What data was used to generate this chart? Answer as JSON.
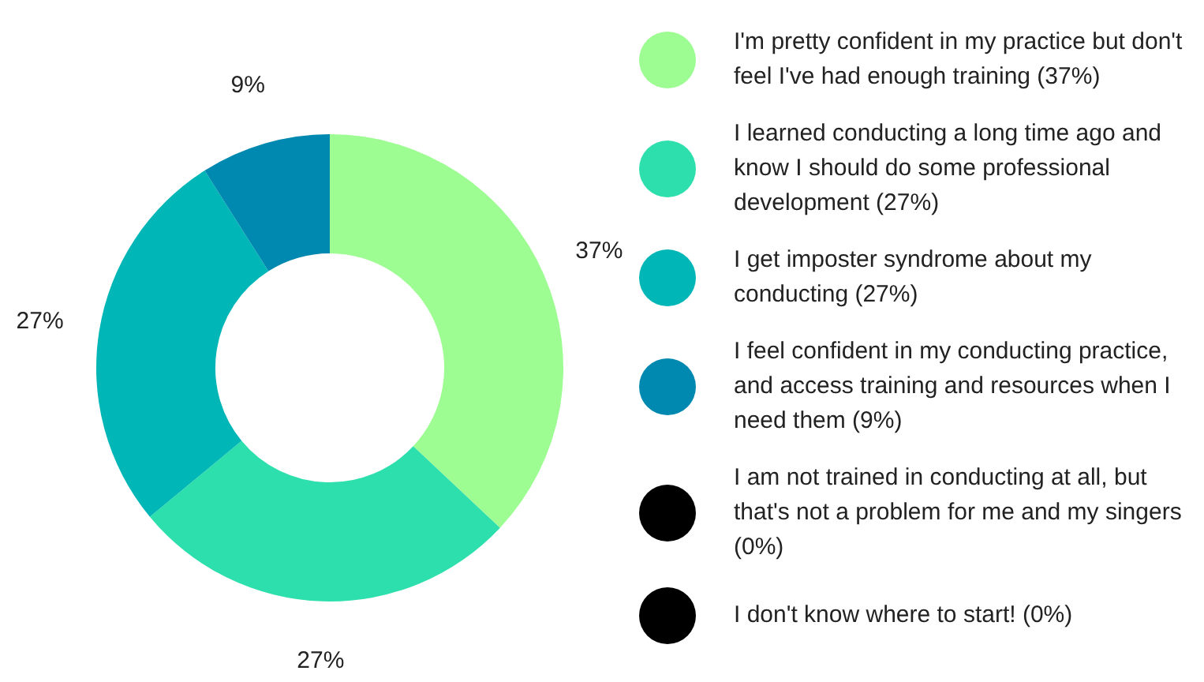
{
  "chart_data": {
    "type": "donut",
    "categories": [
      "I'm pretty confident in my practice but don't feel I've had enough training (37%)",
      "I learned conducting a long time ago and know I should do some professional development (27%)",
      "I get imposter syndrome about my conducting (27%)",
      "I feel confident in my conducting practice, and access training and resources when I need them (9%)",
      "I am not trained in conducting at all, but  that's not a problem for me and my singers (0%)",
      "I don't know where to start! (0%)"
    ],
    "values": [
      37,
      27,
      27,
      9,
      0,
      0
    ],
    "colors": [
      "#9dfd92",
      "#2ddfac",
      "#00b6b6",
      "#0089b0",
      "#000000",
      "#000000"
    ],
    "value_labels": [
      "37%",
      "27%",
      "27%",
      "9%",
      null,
      null
    ],
    "legend": "right"
  }
}
